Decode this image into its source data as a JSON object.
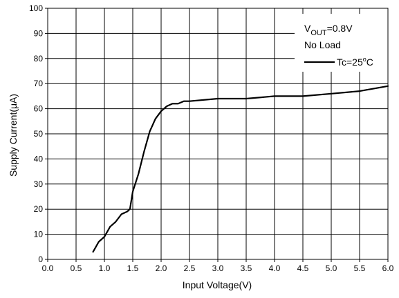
{
  "chart_data": {
    "type": "line",
    "xlabel": "Input Voltage(V)",
    "ylabel": "Supply Current(μA)",
    "xlim": [
      0.0,
      6.0
    ],
    "ylim": [
      0,
      100
    ],
    "x_ticks": [
      "0.0",
      "0.5",
      "1.0",
      "1.5",
      "2.0",
      "2.5",
      "3.0",
      "3.5",
      "4.0",
      "4.5",
      "5.0",
      "5.5",
      "6.0"
    ],
    "y_ticks": [
      "0",
      "10",
      "20",
      "30",
      "40",
      "50",
      "60",
      "70",
      "80",
      "90",
      "100"
    ],
    "grid": true,
    "legend_position": "top-right",
    "annotation": {
      "vout_prefix": "V",
      "vout_sub": "OUT",
      "vout_value": "=0.8V",
      "load": "No Load"
    },
    "series": [
      {
        "name_prefix": "Tc=25",
        "name_sup": "o",
        "name_suffix": "C",
        "color": "#000000",
        "x": [
          0.8,
          0.9,
          1.0,
          1.1,
          1.2,
          1.3,
          1.4,
          1.45,
          1.5,
          1.6,
          1.7,
          1.8,
          1.9,
          2.0,
          2.1,
          2.2,
          2.3,
          2.4,
          2.5,
          3.0,
          3.5,
          4.0,
          4.5,
          5.0,
          5.5,
          6.0
        ],
        "y": [
          3,
          7,
          9,
          13,
          15,
          18,
          19,
          20,
          27,
          34,
          43,
          51,
          56,
          59,
          61,
          62,
          62,
          63,
          63,
          64,
          64,
          65,
          65,
          66,
          67,
          69
        ]
      }
    ]
  }
}
